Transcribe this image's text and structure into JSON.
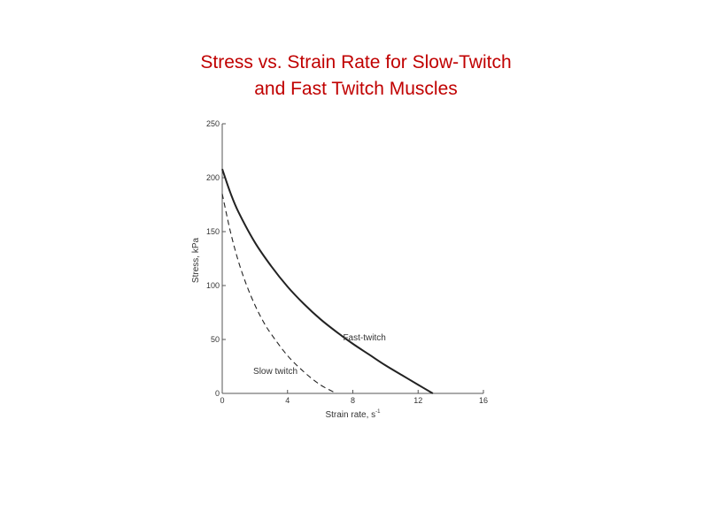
{
  "title_lines": [
    "Stress vs. Strain Rate for Slow-Twitch",
    "and Fast Twitch Muscles"
  ],
  "chart_data": {
    "type": "line",
    "xlabel": "Strain rate, s",
    "xlabel_sup": "-1",
    "ylabel": "Stress, kPa",
    "xlim": [
      0,
      16
    ],
    "ylim": [
      0,
      250
    ],
    "xticks": [
      0,
      4,
      8,
      12,
      16
    ],
    "yticks": [
      0,
      50,
      100,
      150,
      200,
      250
    ],
    "grid": false,
    "series": [
      {
        "name": "Fast-twitch",
        "style": "solid",
        "color": "#222222",
        "x": [
          0,
          0.5,
          1,
          2,
          3,
          4,
          5,
          6,
          7,
          8,
          9,
          10,
          11,
          12,
          12.9
        ],
        "y": [
          208,
          186,
          168,
          140,
          118,
          99,
          83,
          69,
          57,
          46,
          36,
          26,
          17,
          8,
          0
        ]
      },
      {
        "name": "Slow twitch",
        "style": "dashed",
        "color": "#222222",
        "x": [
          0,
          0.5,
          1,
          1.5,
          2,
          2.5,
          3,
          4,
          5,
          6,
          7
        ],
        "y": [
          185,
          150,
          122,
          100,
          82,
          67,
          55,
          35,
          20,
          8,
          0
        ]
      }
    ]
  }
}
